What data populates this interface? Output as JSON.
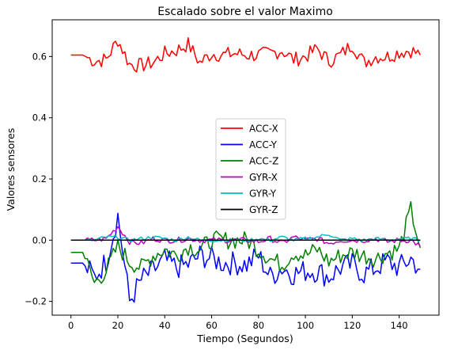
{
  "chart_data": {
    "type": "line",
    "title": "Escalado sobre el valor Maximo",
    "xlabel": "Tiempo (Segundos)",
    "ylabel": "Valores sensores",
    "xlim": [
      -8,
      157
    ],
    "ylim": [
      -0.245,
      0.72
    ],
    "x_ticks": [
      0,
      20,
      40,
      60,
      80,
      100,
      120,
      140
    ],
    "x_tick_labels": [
      "0",
      "20",
      "40",
      "60",
      "80",
      "100",
      "120",
      "140"
    ],
    "y_ticks": [
      -0.2,
      0.0,
      0.2,
      0.4,
      0.6
    ],
    "y_tick_labels": [
      "−0.2",
      "0.0",
      "0.2",
      "0.4",
      "0.6"
    ],
    "grid": false,
    "legend_position": "center",
    "x": [
      0,
      5,
      10,
      15,
      20,
      25,
      30,
      35,
      40,
      45,
      50,
      55,
      60,
      65,
      70,
      75,
      80,
      85,
      90,
      95,
      100,
      105,
      110,
      115,
      120,
      125,
      130,
      135,
      140,
      145,
      149
    ],
    "series": [
      {
        "name": "ACC-X",
        "color": "#ff0000",
        "values": [
          0.605,
          0.605,
          0.585,
          0.59,
          0.655,
          0.575,
          0.57,
          0.58,
          0.61,
          0.62,
          0.64,
          0.58,
          0.61,
          0.605,
          0.61,
          0.605,
          0.605,
          0.61,
          0.62,
          0.59,
          0.6,
          0.625,
          0.585,
          0.605,
          0.64,
          0.58,
          0.6,
          0.6,
          0.615,
          0.62,
          0.605
        ]
      },
      {
        "name": "ACC-Y",
        "color": "#0000ff",
        "values": [
          -0.075,
          -0.075,
          -0.12,
          -0.07,
          0.08,
          -0.2,
          -0.13,
          -0.1,
          -0.065,
          -0.09,
          -0.08,
          -0.05,
          -0.06,
          -0.075,
          -0.075,
          -0.08,
          -0.05,
          -0.12,
          -0.09,
          -0.11,
          -0.1,
          -0.1,
          -0.12,
          -0.09,
          -0.08,
          -0.11,
          -0.09,
          -0.07,
          -0.09,
          -0.06,
          -0.095
        ]
      },
      {
        "name": "ACC-Z",
        "color": "#008000",
        "values": [
          -0.04,
          -0.04,
          -0.14,
          -0.1,
          -0.02,
          -0.07,
          -0.09,
          -0.05,
          -0.03,
          -0.05,
          -0.02,
          -0.03,
          0.0,
          0.0,
          0.0,
          0.0,
          -0.03,
          -0.06,
          -0.08,
          -0.04,
          -0.05,
          -0.03,
          -0.07,
          -0.05,
          -0.04,
          -0.05,
          -0.06,
          -0.04,
          -0.03,
          0.1,
          -0.025
        ]
      },
      {
        "name": "GYR-X",
        "color": "#bf00bf",
        "values": [
          0.0,
          0.0,
          0.0,
          0.005,
          0.045,
          -0.005,
          -0.01,
          0.005,
          0.0,
          0.0,
          0.005,
          0.0,
          0.0,
          0.0,
          0.0,
          0.0,
          -0.005,
          0.005,
          -0.01,
          0.01,
          0.0,
          0.005,
          -0.01,
          0.0,
          0.0,
          0.0,
          0.005,
          -0.005,
          0.0,
          0.0,
          -0.02
        ]
      },
      {
        "name": "GYR-Y",
        "color": "#00bfbf",
        "values": [
          0.0,
          0.0,
          0.0,
          0.01,
          0.01,
          0.0,
          0.005,
          0.01,
          0.005,
          0.0,
          0.01,
          0.0,
          0.0,
          0.0,
          0.0,
          0.0,
          0.005,
          0.0,
          0.01,
          0.0,
          0.005,
          0.01,
          0.02,
          0.0,
          0.005,
          0.0,
          0.005,
          0.0,
          0.005,
          0.005,
          0.0
        ]
      },
      {
        "name": "GYR-Z",
        "color": "#000000",
        "values": [
          0.0,
          0.0,
          0.0,
          0.0,
          0.0,
          0.0,
          0.0,
          0.0,
          0.0,
          0.0,
          0.0,
          0.0,
          0.0,
          0.0,
          0.0,
          0.0,
          0.0,
          0.0,
          0.0,
          0.0,
          0.0,
          0.0,
          0.0,
          0.0,
          0.0,
          0.0,
          0.0,
          0.0,
          0.0,
          0.0,
          0.0
        ]
      }
    ]
  }
}
